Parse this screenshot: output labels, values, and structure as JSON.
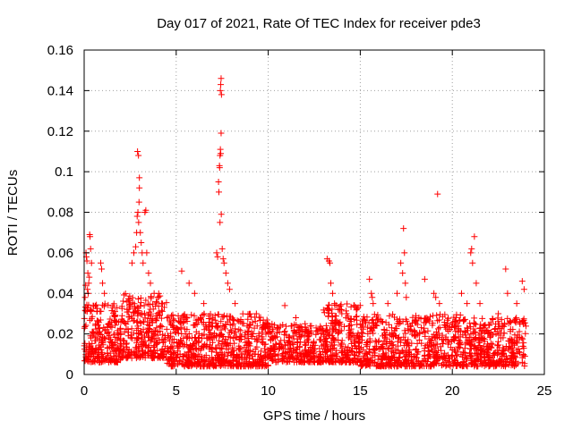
{
  "chart_data": {
    "type": "scatter",
    "title": "Day 017 of 2021, Rate Of TEC Index for receiver pde3",
    "xlabel": "GPS time / hours",
    "ylabel": "ROTI / TECUs",
    "xlim": [
      0,
      25
    ],
    "ylim": [
      0,
      0.16
    ],
    "xticks": [
      0,
      5,
      10,
      15,
      20,
      25
    ],
    "yticks": [
      0,
      0.02,
      0.04,
      0.06,
      0.08,
      0.1,
      0.12,
      0.14,
      0.16
    ],
    "xtick_labels": [
      "0",
      "5",
      "10",
      "15",
      "20",
      "25"
    ],
    "ytick_labels": [
      "0",
      "0.02",
      "0.04",
      "0.06",
      "0.08",
      "0.1",
      "0.12",
      "0.14",
      "0.16"
    ],
    "grid": true,
    "marker": "+",
    "point_color": "#ff0000",
    "series": [
      {
        "name": "ROTI",
        "description_note": "Dense scatter of ROTI samples over 0-24 h; baseline ~0.005-0.03 with excursions",
        "background_bands": [
          {
            "x_start": 0.0,
            "x_end": 2.0,
            "y_min": 0.006,
            "y_max": 0.035,
            "count": 260
          },
          {
            "x_start": 2.0,
            "x_end": 4.5,
            "y_min": 0.008,
            "y_max": 0.04,
            "count": 300
          },
          {
            "x_start": 4.5,
            "x_end": 10.0,
            "y_min": 0.004,
            "y_max": 0.03,
            "count": 650
          },
          {
            "x_start": 10.0,
            "x_end": 13.0,
            "y_min": 0.006,
            "y_max": 0.025,
            "count": 300
          },
          {
            "x_start": 13.0,
            "x_end": 15.0,
            "y_min": 0.006,
            "y_max": 0.035,
            "count": 260
          },
          {
            "x_start": 15.0,
            "x_end": 20.5,
            "y_min": 0.004,
            "y_max": 0.03,
            "count": 600
          },
          {
            "x_start": 20.5,
            "x_end": 24.0,
            "y_min": 0.004,
            "y_max": 0.028,
            "count": 380
          }
        ],
        "points": [
          [
            0.1,
            0.06
          ],
          [
            0.12,
            0.058
          ],
          [
            0.15,
            0.056
          ],
          [
            0.2,
            0.05
          ],
          [
            0.25,
            0.045
          ],
          [
            0.3,
            0.069
          ],
          [
            0.32,
            0.068
          ],
          [
            0.35,
            0.062
          ],
          [
            0.4,
            0.055
          ],
          [
            0.28,
            0.048
          ],
          [
            0.18,
            0.042
          ],
          [
            0.22,
            0.04
          ],
          [
            0.05,
            0.038
          ],
          [
            0.08,
            0.044
          ],
          [
            0.9,
            0.055
          ],
          [
            0.95,
            0.052
          ],
          [
            1.0,
            0.045
          ],
          [
            1.1,
            0.04
          ],
          [
            2.6,
            0.055
          ],
          [
            2.7,
            0.06
          ],
          [
            2.8,
            0.063
          ],
          [
            2.85,
            0.07
          ],
          [
            2.9,
            0.11
          ],
          [
            2.95,
            0.108
          ],
          [
            3.0,
            0.097
          ],
          [
            3.0,
            0.092
          ],
          [
            2.98,
            0.085
          ],
          [
            2.92,
            0.08
          ],
          [
            2.88,
            0.078
          ],
          [
            2.96,
            0.075
          ],
          [
            3.05,
            0.07
          ],
          [
            3.1,
            0.065
          ],
          [
            3.15,
            0.06
          ],
          [
            3.2,
            0.055
          ],
          [
            3.3,
            0.08
          ],
          [
            3.35,
            0.081
          ],
          [
            3.4,
            0.06
          ],
          [
            3.5,
            0.05
          ],
          [
            3.6,
            0.045
          ],
          [
            3.8,
            0.04
          ],
          [
            4.0,
            0.038
          ],
          [
            4.2,
            0.035
          ],
          [
            5.3,
            0.051
          ],
          [
            5.7,
            0.045
          ],
          [
            6.0,
            0.04
          ],
          [
            6.5,
            0.035
          ],
          [
            7.2,
            0.06
          ],
          [
            7.25,
            0.058
          ],
          [
            7.3,
            0.095
          ],
          [
            7.32,
            0.09
          ],
          [
            7.35,
            0.103
          ],
          [
            7.36,
            0.102
          ],
          [
            7.38,
            0.108
          ],
          [
            7.4,
            0.111
          ],
          [
            7.42,
            0.109
          ],
          [
            7.44,
            0.119
          ],
          [
            7.4,
            0.14
          ],
          [
            7.42,
            0.143
          ],
          [
            7.44,
            0.146
          ],
          [
            7.46,
            0.138
          ],
          [
            7.38,
            0.075
          ],
          [
            7.45,
            0.079
          ],
          [
            7.5,
            0.062
          ],
          [
            7.55,
            0.057
          ],
          [
            7.6,
            0.055
          ],
          [
            7.7,
            0.05
          ],
          [
            7.8,
            0.045
          ],
          [
            7.9,
            0.042
          ],
          [
            8.2,
            0.035
          ],
          [
            10.9,
            0.034
          ],
          [
            11.5,
            0.028
          ],
          [
            12.0,
            0.025
          ],
          [
            13.2,
            0.057
          ],
          [
            13.3,
            0.056
          ],
          [
            13.35,
            0.055
          ],
          [
            13.4,
            0.045
          ],
          [
            13.5,
            0.04
          ],
          [
            13.6,
            0.035
          ],
          [
            13.8,
            0.032
          ],
          [
            14.0,
            0.03
          ],
          [
            15.5,
            0.047
          ],
          [
            15.6,
            0.04
          ],
          [
            15.65,
            0.038
          ],
          [
            15.7,
            0.035
          ],
          [
            16.5,
            0.035
          ],
          [
            17.0,
            0.04
          ],
          [
            17.2,
            0.055
          ],
          [
            17.3,
            0.05
          ],
          [
            17.35,
            0.072
          ],
          [
            17.4,
            0.06
          ],
          [
            17.45,
            0.045
          ],
          [
            17.5,
            0.038
          ],
          [
            18.5,
            0.047
          ],
          [
            19.0,
            0.04
          ],
          [
            19.1,
            0.038
          ],
          [
            19.2,
            0.089
          ],
          [
            19.3,
            0.035
          ],
          [
            20.5,
            0.04
          ],
          [
            20.8,
            0.035
          ],
          [
            21.0,
            0.06
          ],
          [
            21.05,
            0.062
          ],
          [
            21.1,
            0.055
          ],
          [
            21.2,
            0.068
          ],
          [
            21.3,
            0.045
          ],
          [
            21.5,
            0.035
          ],
          [
            22.5,
            0.03
          ],
          [
            22.9,
            0.052
          ],
          [
            23.0,
            0.04
          ],
          [
            23.5,
            0.035
          ],
          [
            23.8,
            0.046
          ],
          [
            23.9,
            0.042
          ]
        ]
      }
    ]
  }
}
